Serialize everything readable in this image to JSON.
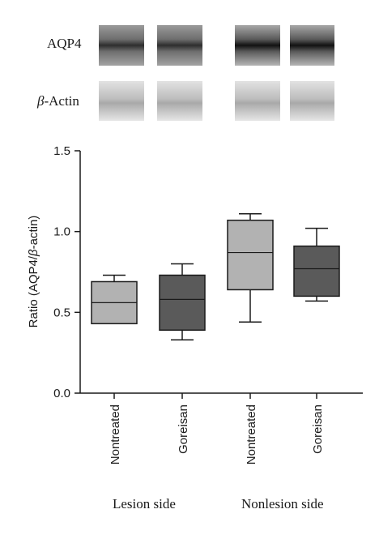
{
  "blots": {
    "aqp4_label": "AQP4",
    "actin_beta": "β",
    "actin_rest": "-Actin"
  },
  "groups": {
    "lesion": "Lesion side",
    "nonlesion": "Nonlesion side"
  },
  "colors": {
    "nontreated_box": "#b2b2b2",
    "goreisan_box": "#5a5a5a",
    "axis": "#1a1a1a"
  },
  "chart_data": {
    "type": "box",
    "ylabel_parts": [
      "Ratio (AQP4/",
      "β",
      "-actin)"
    ],
    "ylim": [
      0.0,
      1.5
    ],
    "yticks": [
      "0.0",
      "0.5",
      "1.0",
      "1.5"
    ],
    "categories": [
      "Nontreated",
      "Goreisan",
      "Nontreated",
      "Goreisan"
    ],
    "boxes": [
      {
        "category": "Nontreated",
        "min": 0.43,
        "q1": 0.43,
        "median": 0.56,
        "q3": 0.69,
        "max": 0.73
      },
      {
        "category": "Goreisan",
        "min": 0.33,
        "q1": 0.39,
        "median": 0.58,
        "q3": 0.73,
        "max": 0.8
      },
      {
        "category": "Nontreated",
        "min": 0.44,
        "q1": 0.64,
        "median": 0.87,
        "q3": 1.07,
        "max": 1.11
      },
      {
        "category": "Goreisan",
        "min": 0.57,
        "q1": 0.6,
        "median": 0.77,
        "q3": 0.91,
        "max": 1.02
      }
    ]
  }
}
